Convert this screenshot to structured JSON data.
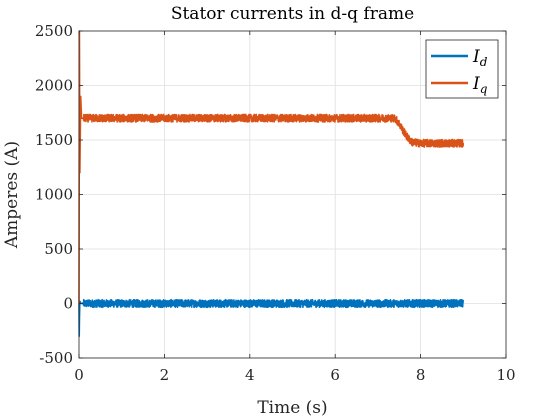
{
  "chart_data": {
    "type": "line",
    "title": "Stator currents in d-q frame",
    "xlabel": "Time (s)",
    "ylabel": "Amperes (A)",
    "xlim": [
      0,
      10
    ],
    "ylim": [
      -500,
      2500
    ],
    "xticks": [
      0,
      2,
      4,
      6,
      8,
      10
    ],
    "yticks": [
      -500,
      0,
      500,
      1000,
      1500,
      2000,
      2500
    ],
    "xtick_labels": [
      "0",
      "2",
      "4",
      "6",
      "8",
      "10"
    ],
    "ytick_labels": [
      "-500",
      "0",
      "500",
      "1000",
      "1500",
      "2000",
      "2500"
    ],
    "grid": true,
    "legend_position": "top-right",
    "series": [
      {
        "name": "Id",
        "name_base": "I",
        "name_sub": "d",
        "color": "#0072BD",
        "x": [
          0,
          0.005,
          0.01,
          0.02,
          0.05,
          0.1,
          0.5,
          1,
          2,
          3,
          4,
          5,
          6,
          7,
          7.5,
          8,
          8.5,
          9
        ],
        "y": [
          0,
          -300,
          -150,
          20,
          0,
          0,
          0,
          0,
          0,
          0,
          0,
          0,
          0,
          0,
          0,
          0,
          0,
          0
        ],
        "noise": 35
      },
      {
        "name": "Iq",
        "name_base": "I",
        "name_sub": "q",
        "color": "#D95319",
        "x": [
          0,
          0.01,
          0.02,
          0.04,
          0.06,
          0.1,
          0.5,
          1,
          2,
          3,
          4,
          5,
          6,
          7,
          7.4,
          7.5,
          7.6,
          7.7,
          7.8,
          8,
          8.5,
          9
        ],
        "y": [
          0,
          2500,
          1200,
          1900,
          1700,
          1700,
          1700,
          1700,
          1700,
          1700,
          1700,
          1700,
          1700,
          1700,
          1700,
          1650,
          1580,
          1520,
          1480,
          1470,
          1470,
          1470
        ],
        "noise": 35
      }
    ]
  }
}
